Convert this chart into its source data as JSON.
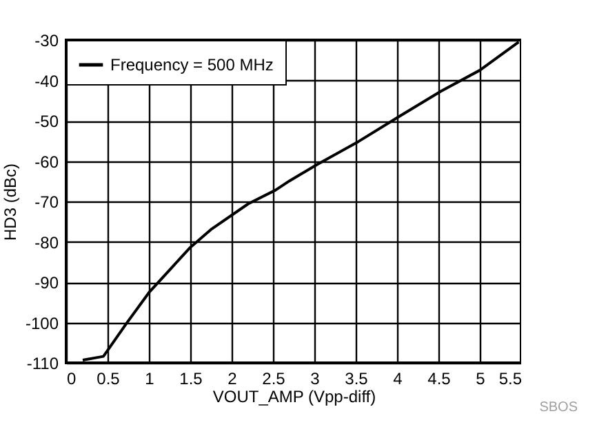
{
  "chart_data": {
    "type": "line",
    "xlabel": "VOUT_AMP (Vpp-diff)",
    "ylabel": "HD3 (dBc)",
    "annotations": [
      "SBOS"
    ],
    "x": [
      0.2,
      0.45,
      0.73,
      1.0,
      1.37,
      1.5,
      1.76,
      2.2,
      2.53,
      2.7,
      3.03,
      3.53,
      4.03,
      4.53,
      5.0,
      5.47
    ],
    "series": [
      {
        "name": "Frequency = 500 MHz",
        "color": "#000000",
        "values": [
          -109.3,
          -108.4,
          -100.2,
          -92.6,
          -84.3,
          -81.4,
          -76.8,
          -70.6,
          -67.2,
          -64.9,
          -60.9,
          -55.2,
          -48.9,
          -42.7,
          -37.5,
          -30.5
        ]
      }
    ],
    "xlim": [
      0,
      5.5
    ],
    "xticks": [
      0,
      0.5,
      1,
      1.5,
      2,
      2.5,
      3,
      3.5,
      4,
      4.5,
      5,
      5.5
    ],
    "ylim": [
      -110,
      -30
    ],
    "yticks": [
      -110,
      -100,
      -90,
      -80,
      -70,
      -60,
      -50,
      -40,
      -30
    ],
    "grid": true,
    "legend": "top left",
    "marker": "none",
    "line_style": "solid"
  }
}
